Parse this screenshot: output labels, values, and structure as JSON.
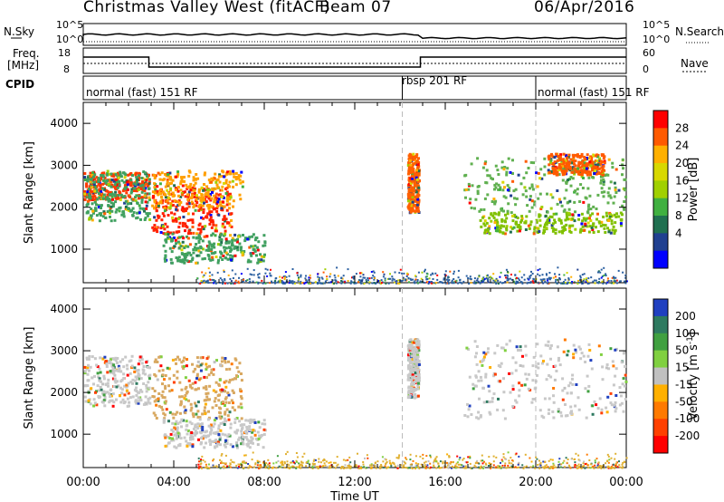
{
  "header": {
    "title": "Christmas Valley West (fitACF)",
    "beam": "Beam 07",
    "date": "06/Apr/2016"
  },
  "strip": {
    "nsky_label": "N.Sky",
    "nsky_ticks": [
      "10^5",
      "10^0"
    ],
    "nsearch_label": "N.Search",
    "nsearch_ticks": [
      "10^5",
      "10^0"
    ],
    "freq_label": "Freq.",
    "freq_unit": "[MHz]",
    "freq_ticks": [
      "18",
      "8"
    ],
    "nave_label": "Nave",
    "nave_ticks": [
      "60",
      "0"
    ],
    "cpid_label": "CPID",
    "modes": [
      "normal (fast) 151 RF",
      "rbsp 201 RF",
      "normal (fast) 151 RF"
    ]
  },
  "chart_data": [
    {
      "type": "heatmap",
      "name": "power",
      "ylabel": "Slant Range [km]",
      "y_ticks": [
        1000,
        2000,
        3000,
        4000
      ],
      "ylim": [
        200,
        4500
      ],
      "colorbar": {
        "label": "Power [dB]",
        "ticks": [
          "28",
          "24",
          "20",
          "16",
          "12",
          "8",
          "4"
        ],
        "colors": [
          "#ff0000",
          "#ff5a00",
          "#ffb000",
          "#d8d800",
          "#a0d000",
          "#40b040",
          "#207050",
          "#204090",
          "#0000ff"
        ]
      },
      "regions": [
        {
          "t": [
            0.0,
            2.9
          ],
          "r": [
            2200,
            2850
          ],
          "c": "#ff3a00"
        },
        {
          "t": [
            0.1,
            2.9
          ],
          "r": [
            1700,
            2900
          ],
          "c": "#40a060"
        },
        {
          "t": [
            3.0,
            6.5
          ],
          "r": [
            1400,
            2500
          ],
          "c": "#ff2000"
        },
        {
          "t": [
            3.0,
            7.0
          ],
          "r": [
            2000,
            2900
          ],
          "c": "#ffa000"
        },
        {
          "t": [
            3.5,
            8.0
          ],
          "r": [
            700,
            1400
          ],
          "c": "#40a060"
        },
        {
          "t": [
            14.3,
            14.8
          ],
          "r": [
            1900,
            3300
          ],
          "c": "#ff6000"
        },
        {
          "t": [
            17.5,
            23.8
          ],
          "r": [
            1400,
            1900
          ],
          "c": "#80c000"
        },
        {
          "t": [
            16.8,
            24.0
          ],
          "r": [
            1900,
            3200
          ],
          "c": "#60b050"
        },
        {
          "t": [
            20.5,
            23.0
          ],
          "r": [
            2800,
            3300
          ],
          "c": "#ff5a00"
        }
      ],
      "ground": {
        "t": [
          5.0,
          24.0
        ],
        "r": [
          200,
          600
        ],
        "c": "#2a5fa0"
      }
    },
    {
      "type": "heatmap",
      "name": "velocity",
      "ylabel": "Slant Range [km]",
      "xlabel": "Time UT",
      "x_ticks": [
        "00:00",
        "04:00",
        "08:00",
        "12:00",
        "16:00",
        "20:00",
        "00:00"
      ],
      "xlim": [
        0,
        24
      ],
      "y_ticks": [
        1000,
        2000,
        3000,
        4000
      ],
      "ylim": [
        200,
        4500
      ],
      "colorbar": {
        "label": "Velocity [m s",
        "label_sup": "-1",
        "label_end": "]",
        "ticks": [
          "200",
          "100",
          "50",
          "15",
          "-15",
          "-50",
          "-100",
          "-200"
        ],
        "colors": [
          "#2040c0",
          "#2e7a60",
          "#40a040",
          "#80d040",
          "#c0c0c0",
          "#ffb000",
          "#ff7a00",
          "#ff4000",
          "#ff0000"
        ]
      },
      "regions": [
        {
          "t": [
            0.0,
            2.9
          ],
          "r": [
            1700,
            2900
          ],
          "c": "#c8c8c8"
        },
        {
          "t": [
            3.0,
            7.0
          ],
          "r": [
            1400,
            2900
          ],
          "c": "#d8a860"
        },
        {
          "t": [
            3.5,
            8.0
          ],
          "r": [
            700,
            1400
          ],
          "c": "#c8c8c8"
        },
        {
          "t": [
            14.3,
            14.8
          ],
          "r": [
            1900,
            3300
          ],
          "c": "#c8c8c8"
        },
        {
          "t": [
            16.8,
            24.0
          ],
          "r": [
            1400,
            3300
          ],
          "c": "#c8c8c8"
        }
      ],
      "ground": {
        "t": [
          5.0,
          24.0
        ],
        "r": [
          200,
          600
        ],
        "c": "#e0b030"
      }
    }
  ]
}
